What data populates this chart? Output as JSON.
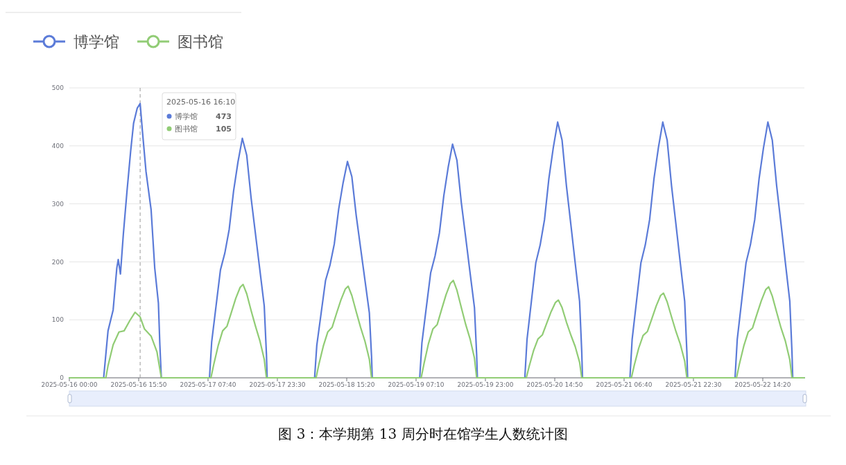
{
  "chart_data": {
    "type": "line",
    "legend": "top left",
    "grid": "y",
    "line_style": "solid",
    "xlim": [
      "2025-05-16T00:00",
      "2025-05-22T23:50"
    ],
    "xticks": [
      {
        "value": "2025-05-16T00:00",
        "label": "2025-05-16 00:00"
      },
      {
        "value": "2025-05-16T15:50",
        "label": "2025-05-16 15:50"
      },
      {
        "value": "2025-05-17T07:40",
        "label": "2025-05-17 07:40"
      },
      {
        "value": "2025-05-17T23:30",
        "label": "2025-05-17 23:30"
      },
      {
        "value": "2025-05-18T15:20",
        "label": "2025-05-18 15:20"
      },
      {
        "value": "2025-05-19T07:10",
        "label": "2025-05-19 07:10"
      },
      {
        "value": "2025-05-19T23:00",
        "label": "2025-05-19 23:00"
      },
      {
        "value": "2025-05-20T14:50",
        "label": "2025-05-20 14:50"
      },
      {
        "value": "2025-05-21T06:40",
        "label": "2025-05-21 06:40"
      },
      {
        "value": "2025-05-21T22:30",
        "label": "2025-05-21 22:30"
      },
      {
        "value": "2025-05-22T14:20",
        "label": "2025-05-22 14:20"
      }
    ],
    "ylim": [
      0,
      500
    ],
    "yticks": [
      0,
      100,
      200,
      300,
      400,
      500
    ],
    "ref_lines": [
      {
        "axis": "x",
        "value": "2025-05-16T16:10",
        "line_style": "dashed",
        "color": "#999999"
      }
    ],
    "series": [
      {
        "name": "博学馆",
        "color": "#5b7bd8",
        "x": [
          "2025-05-16T00:00",
          "2025-05-16T07:50",
          "2025-05-16T08:50",
          "2025-05-16T10:00",
          "2025-05-16T10:50",
          "2025-05-16T11:10",
          "2025-05-16T11:40",
          "2025-05-16T12:20",
          "2025-05-16T13:10",
          "2025-05-16T14:00",
          "2025-05-16T14:40",
          "2025-05-16T15:30",
          "2025-05-16T16:10",
          "2025-05-16T16:40",
          "2025-05-16T17:30",
          "2025-05-16T18:40",
          "2025-05-16T19:30",
          "2025-05-16T20:20",
          "2025-05-16T20:40",
          "2025-05-16T21:00",
          "2025-05-17T08:00",
          "2025-05-17T08:30",
          "2025-05-17T09:30",
          "2025-05-17T10:30",
          "2025-05-17T11:30",
          "2025-05-17T12:30",
          "2025-05-17T13:30",
          "2025-05-17T14:30",
          "2025-05-17T15:30",
          "2025-05-17T16:30",
          "2025-05-17T17:30",
          "2025-05-17T18:30",
          "2025-05-17T19:30",
          "2025-05-17T20:30",
          "2025-05-17T21:00",
          "2025-05-17T21:10",
          "2025-05-18T08:00",
          "2025-05-18T08:30",
          "2025-05-18T09:30",
          "2025-05-18T10:30",
          "2025-05-18T11:30",
          "2025-05-18T12:30",
          "2025-05-18T13:30",
          "2025-05-18T14:30",
          "2025-05-18T15:30",
          "2025-05-18T16:30",
          "2025-05-18T17:30",
          "2025-05-18T18:30",
          "2025-05-18T19:30",
          "2025-05-18T20:30",
          "2025-05-18T21:00",
          "2025-05-18T21:10",
          "2025-05-19T08:00",
          "2025-05-19T08:30",
          "2025-05-19T09:30",
          "2025-05-19T10:30",
          "2025-05-19T11:30",
          "2025-05-19T12:30",
          "2025-05-19T13:30",
          "2025-05-19T14:30",
          "2025-05-19T15:30",
          "2025-05-19T16:30",
          "2025-05-19T17:30",
          "2025-05-19T18:30",
          "2025-05-19T19:30",
          "2025-05-19T20:30",
          "2025-05-19T21:00",
          "2025-05-19T21:10",
          "2025-05-20T08:00",
          "2025-05-20T08:30",
          "2025-05-20T09:30",
          "2025-05-20T10:30",
          "2025-05-20T11:30",
          "2025-05-20T12:30",
          "2025-05-20T13:30",
          "2025-05-20T14:30",
          "2025-05-20T15:30",
          "2025-05-20T16:30",
          "2025-05-20T17:30",
          "2025-05-20T18:30",
          "2025-05-20T19:30",
          "2025-05-20T20:30",
          "2025-05-20T21:00",
          "2025-05-20T21:10",
          "2025-05-21T08:00",
          "2025-05-21T08:30",
          "2025-05-21T09:30",
          "2025-05-21T10:30",
          "2025-05-21T11:30",
          "2025-05-21T12:30",
          "2025-05-21T13:30",
          "2025-05-21T14:30",
          "2025-05-21T15:30",
          "2025-05-21T16:30",
          "2025-05-21T17:30",
          "2025-05-21T18:30",
          "2025-05-21T19:30",
          "2025-05-21T20:30",
          "2025-05-21T21:00",
          "2025-05-21T21:10",
          "2025-05-22T08:00",
          "2025-05-22T08:30",
          "2025-05-22T09:30",
          "2025-05-22T10:30",
          "2025-05-22T11:30",
          "2025-05-22T12:30",
          "2025-05-22T13:30",
          "2025-05-22T14:30",
          "2025-05-22T15:30",
          "2025-05-22T16:30",
          "2025-05-22T17:30",
          "2025-05-22T18:30",
          "2025-05-22T19:30",
          "2025-05-22T20:30",
          "2025-05-22T21:00",
          "2025-05-22T21:10",
          "2025-05-22T23:50"
        ],
        "values": [
          0,
          0,
          81,
          117,
          189,
          204,
          179,
          248,
          322,
          391,
          439,
          465,
          473,
          427,
          356,
          290,
          189,
          129,
          57,
          0,
          0,
          62,
          124,
          186,
          215,
          256,
          322,
          372,
          413,
          384,
          310,
          248,
          186,
          124,
          41,
          0,
          0,
          56,
          112,
          168,
          194,
          231,
          291,
          336,
          373,
          347,
          280,
          224,
          168,
          112,
          37,
          0,
          0,
          60,
          121,
          181,
          210,
          250,
          314,
          363,
          403,
          375,
          302,
          242,
          181,
          121,
          40,
          0,
          0,
          66,
          132,
          198,
          229,
          273,
          344,
          397,
          441,
          410,
          331,
          265,
          198,
          132,
          44,
          0,
          0,
          66,
          132,
          198,
          229,
          273,
          344,
          397,
          441,
          410,
          331,
          265,
          198,
          132,
          44,
          0,
          0,
          66,
          132,
          198,
          229,
          273,
          344,
          397,
          441,
          410,
          331,
          265,
          198,
          132,
          44,
          0,
          0
        ]
      },
      {
        "name": "图书馆",
        "color": "#91cc75",
        "x": [
          "2025-05-16T00:00",
          "2025-05-16T08:20",
          "2025-05-16T08:50",
          "2025-05-16T10:00",
          "2025-05-16T11:20",
          "2025-05-16T12:30",
          "2025-05-16T13:50",
          "2025-05-16T15:00",
          "2025-05-16T16:10",
          "2025-05-16T17:10",
          "2025-05-16T18:40",
          "2025-05-16T20:00",
          "2025-05-16T21:00",
          "2025-05-17T08:20",
          "2025-05-17T09:00",
          "2025-05-17T10:00",
          "2025-05-17T11:00",
          "2025-05-17T12:00",
          "2025-05-17T13:00",
          "2025-05-17T14:00",
          "2025-05-17T15:00",
          "2025-05-17T15:40",
          "2025-05-17T16:30",
          "2025-05-17T17:30",
          "2025-05-17T18:30",
          "2025-05-17T19:30",
          "2025-05-17T20:30",
          "2025-05-17T21:00",
          "2025-05-18T08:20",
          "2025-05-18T09:00",
          "2025-05-18T10:00",
          "2025-05-18T11:00",
          "2025-05-18T12:00",
          "2025-05-18T13:00",
          "2025-05-18T14:00",
          "2025-05-18T15:00",
          "2025-05-18T15:40",
          "2025-05-18T16:30",
          "2025-05-18T17:30",
          "2025-05-18T18:30",
          "2025-05-18T19:30",
          "2025-05-18T20:30",
          "2025-05-18T21:00",
          "2025-05-19T08:20",
          "2025-05-19T09:00",
          "2025-05-19T10:00",
          "2025-05-19T11:00",
          "2025-05-19T12:00",
          "2025-05-19T13:00",
          "2025-05-19T14:00",
          "2025-05-19T15:00",
          "2025-05-19T15:40",
          "2025-05-19T16:30",
          "2025-05-19T17:30",
          "2025-05-19T18:30",
          "2025-05-19T19:30",
          "2025-05-19T20:30",
          "2025-05-19T21:00",
          "2025-05-20T08:20",
          "2025-05-20T09:00",
          "2025-05-20T10:00",
          "2025-05-20T11:00",
          "2025-05-20T12:00",
          "2025-05-20T13:00",
          "2025-05-20T14:00",
          "2025-05-20T15:00",
          "2025-05-20T15:40",
          "2025-05-20T16:30",
          "2025-05-20T17:30",
          "2025-05-20T18:30",
          "2025-05-20T19:30",
          "2025-05-20T20:30",
          "2025-05-20T21:00",
          "2025-05-21T08:20",
          "2025-05-21T09:00",
          "2025-05-21T10:00",
          "2025-05-21T11:00",
          "2025-05-21T12:00",
          "2025-05-21T13:00",
          "2025-05-21T14:00",
          "2025-05-21T15:00",
          "2025-05-21T15:40",
          "2025-05-21T16:30",
          "2025-05-21T17:30",
          "2025-05-21T18:30",
          "2025-05-21T19:30",
          "2025-05-21T20:30",
          "2025-05-21T21:00",
          "2025-05-22T08:20",
          "2025-05-22T09:00",
          "2025-05-22T10:00",
          "2025-05-22T11:00",
          "2025-05-22T12:00",
          "2025-05-22T13:00",
          "2025-05-22T14:00",
          "2025-05-22T15:00",
          "2025-05-22T15:40",
          "2025-05-22T16:30",
          "2025-05-22T17:30",
          "2025-05-22T18:30",
          "2025-05-22T19:30",
          "2025-05-22T20:30",
          "2025-05-22T21:00",
          "2025-05-22T23:50"
        ],
        "values": [
          0,
          0,
          21,
          57,
          79,
          81,
          99,
          113,
          105,
          84,
          72,
          45,
          0,
          0,
          24,
          56,
          81,
          89,
          113,
          137,
          156,
          161,
          145,
          116,
          89,
          64,
          32,
          0,
          0,
          24,
          55,
          79,
          87,
          111,
          134,
          153,
          158,
          142,
          114,
          87,
          63,
          32,
          0,
          0,
          25,
          59,
          84,
          92,
          118,
          143,
          163,
          168,
          151,
          121,
          92,
          67,
          34,
          0,
          0,
          20,
          47,
          67,
          74,
          94,
          114,
          130,
          134,
          121,
          96,
          74,
          54,
          27,
          0,
          0,
          22,
          51,
          73,
          80,
          102,
          124,
          142,
          146,
          131,
          105,
          80,
          58,
          29,
          0,
          0,
          24,
          55,
          79,
          86,
          110,
          133,
          152,
          157,
          141,
          113,
          86,
          63,
          31,
          0,
          0
        ]
      }
    ],
    "annotations": [
      "2025-05-16 16:10",
      "473",
      "105",
      "图 3：本学期第 13 周分时在馆学生人数统计图"
    ]
  }
}
